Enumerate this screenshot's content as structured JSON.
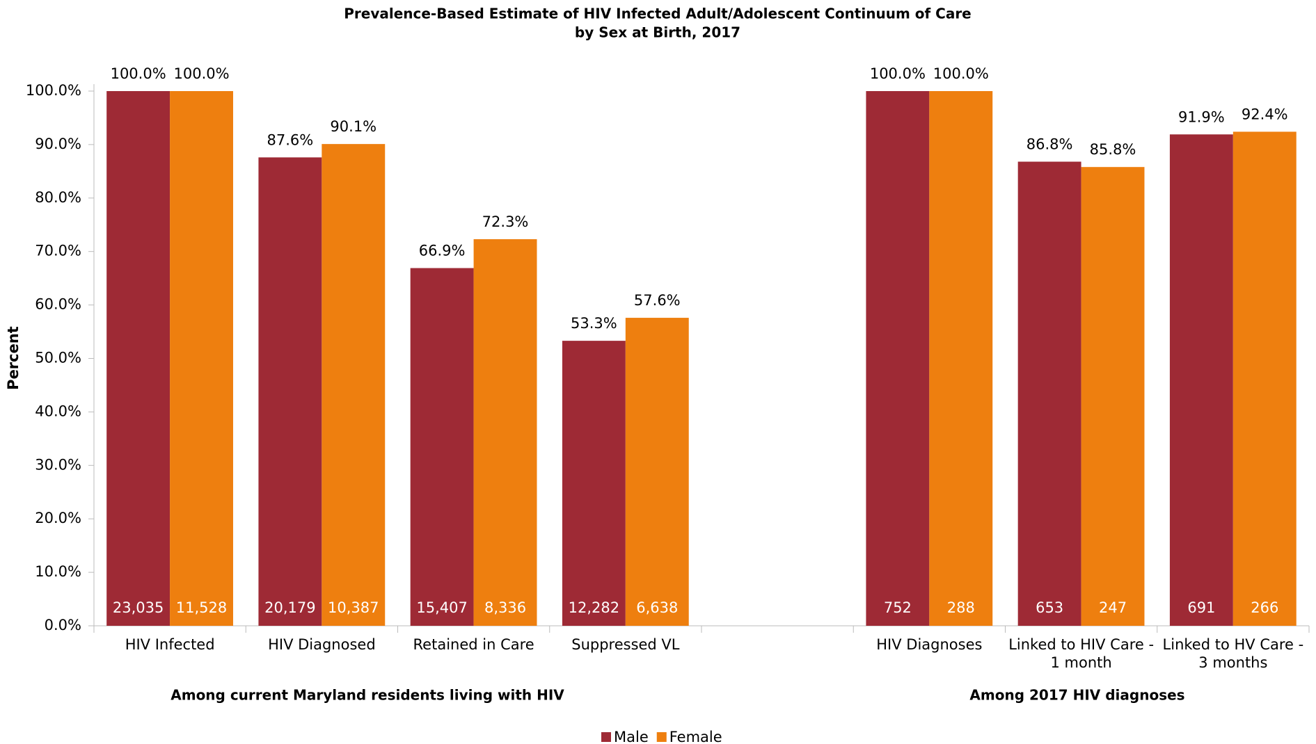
{
  "chart_data": {
    "type": "bar",
    "title": "Prevalence-Based Estimate of HIV Infected Adult/Adolescent Continuum of Care",
    "subtitle": "by Sex at Birth, 2017",
    "y_label": "Percent",
    "categories": [
      "HIV Infected",
      "HIV Diagnosed",
      "Retained in Care",
      "Suppressed VL",
      null,
      "HIV Diagnoses",
      "Linked to HIV Care - 1 month",
      "Linked to HV Care - 3 months"
    ],
    "groups": [
      "Among current Maryland residents living with HIV",
      "Among 2017 HIV diagnoses"
    ],
    "series": [
      {
        "name": "Male",
        "color": "#9e2a35",
        "values": [
          100,
          87.6,
          66.9,
          53.3,
          null,
          100,
          86.8,
          91.9
        ],
        "value_labels": [
          "100.0%",
          "87.6%",
          "66.9%",
          "53.3%",
          null,
          "100.0%",
          "86.8%",
          "91.9%"
        ],
        "count_labels": [
          "23,035",
          "20,179",
          "15,407",
          "12,282",
          null,
          "752",
          "653",
          "691"
        ]
      },
      {
        "name": "Female",
        "color": "#ee7f0f",
        "values": [
          100,
          90.1,
          72.3,
          57.6,
          null,
          100,
          85.8,
          92.4
        ],
        "value_labels": [
          "100.0%",
          "90.1%",
          "72.3%",
          "57.6%",
          null,
          "100.0%",
          "85.8%",
          "92.4%"
        ],
        "count_labels": [
          "11,528",
          "10,387",
          "8,336",
          "6,638",
          null,
          "288",
          "247",
          "266"
        ]
      }
    ],
    "ylim": [
      0,
      100
    ],
    "yticks": [
      {
        "value": 0,
        "label": "0.0%"
      },
      {
        "value": 10,
        "label": "10.0%"
      },
      {
        "value": 20,
        "label": "20.0%"
      },
      {
        "value": 30,
        "label": "30.0%"
      },
      {
        "value": 40,
        "label": "40.0%"
      },
      {
        "value": 50,
        "label": "50.0%"
      },
      {
        "value": 60,
        "label": "60.0%"
      },
      {
        "value": 70,
        "label": "70.0%"
      },
      {
        "value": 80,
        "label": "80.0%"
      },
      {
        "value": 90,
        "label": "90.0%"
      },
      {
        "value": 100,
        "label": "100.0%"
      }
    ],
    "grid": false
  }
}
